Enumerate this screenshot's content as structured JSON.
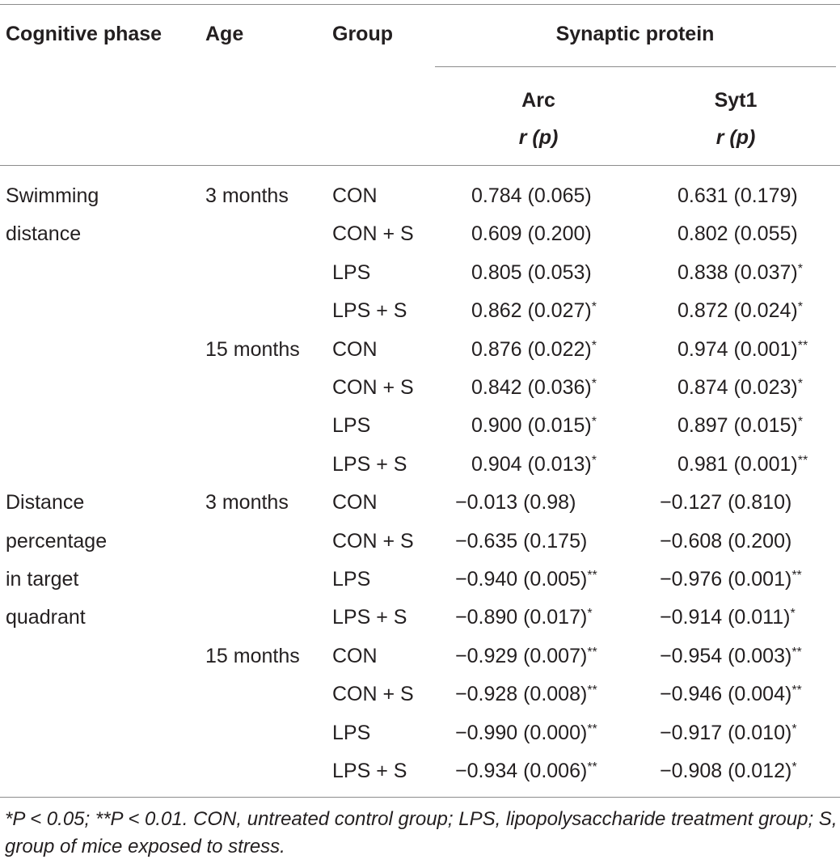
{
  "header": {
    "cognitive_phase": "Cognitive phase",
    "age": "Age",
    "group": "Group",
    "synaptic_protein": "Synaptic protein",
    "arc": "Arc",
    "syt1": "Syt1",
    "stat": "r (p)"
  },
  "phases": [
    {
      "lines": [
        "Swimming",
        "distance"
      ]
    },
    {
      "lines": [
        "Distance",
        "percentage",
        "in target",
        "quadrant"
      ]
    }
  ],
  "rows": [
    {
      "age": "3 months",
      "group": "CON",
      "arc": "0.784 (0.065)",
      "arc_sig": "",
      "syt1": "0.631 (0.179)",
      "syt1_sig": ""
    },
    {
      "age": "",
      "group": "CON + S",
      "arc": "0.609 (0.200)",
      "arc_sig": "",
      "syt1": "0.802 (0.055)",
      "syt1_sig": ""
    },
    {
      "age": "",
      "group": "LPS",
      "arc": "0.805 (0.053)",
      "arc_sig": "",
      "syt1": "0.838 (0.037)",
      "syt1_sig": "*"
    },
    {
      "age": "",
      "group": "LPS + S",
      "arc": "0.862 (0.027)",
      "arc_sig": "*",
      "syt1": "0.872 (0.024)",
      "syt1_sig": "*"
    },
    {
      "age": "15 months",
      "group": "CON",
      "arc": "0.876 (0.022)",
      "arc_sig": "*",
      "syt1": "0.974 (0.001)",
      "syt1_sig": "**"
    },
    {
      "age": "",
      "group": "CON + S",
      "arc": "0.842 (0.036)",
      "arc_sig": "*",
      "syt1": "0.874 (0.023)",
      "syt1_sig": "*"
    },
    {
      "age": "",
      "group": "LPS",
      "arc": "0.900 (0.015)",
      "arc_sig": "*",
      "syt1": "0.897 (0.015)",
      "syt1_sig": "*"
    },
    {
      "age": "",
      "group": "LPS + S",
      "arc": "0.904 (0.013)",
      "arc_sig": "*",
      "syt1": "0.981 (0.001)",
      "syt1_sig": "**"
    },
    {
      "age": "3 months",
      "group": "CON",
      "arc": "−0.013 (0.98)",
      "arc_sig": "",
      "syt1": "−0.127 (0.810)",
      "syt1_sig": ""
    },
    {
      "age": "",
      "group": "CON + S",
      "arc": "−0.635 (0.175)",
      "arc_sig": "",
      "syt1": "−0.608 (0.200)",
      "syt1_sig": ""
    },
    {
      "age": "",
      "group": "LPS",
      "arc": "−0.940 (0.005)",
      "arc_sig": "**",
      "syt1": "−0.976 (0.001)",
      "syt1_sig": "**"
    },
    {
      "age": "",
      "group": "LPS + S",
      "arc": "−0.890 (0.017)",
      "arc_sig": "*",
      "syt1": "−0.914 (0.011)",
      "syt1_sig": "*"
    },
    {
      "age": "15 months",
      "group": "CON",
      "arc": "−0.929 (0.007)",
      "arc_sig": "**",
      "syt1": "−0.954 (0.003)",
      "syt1_sig": "**"
    },
    {
      "age": "",
      "group": "CON + S",
      "arc": "−0.928 (0.008)",
      "arc_sig": "**",
      "syt1": "−0.946 (0.004)",
      "syt1_sig": "**"
    },
    {
      "age": "",
      "group": "LPS",
      "arc": "−0.990 (0.000)",
      "arc_sig": "**",
      "syt1": "−0.917 (0.010)",
      "syt1_sig": "*"
    },
    {
      "age": "",
      "group": "LPS + S",
      "arc": "−0.934 (0.006)",
      "arc_sig": "**",
      "syt1": "−0.908 (0.012)",
      "syt1_sig": "*"
    }
  ],
  "footnote": "*P < 0.05; **P < 0.01. CON, untreated control group; LPS, lipopolysaccharide treatment group; S, group of mice exposed to stress."
}
